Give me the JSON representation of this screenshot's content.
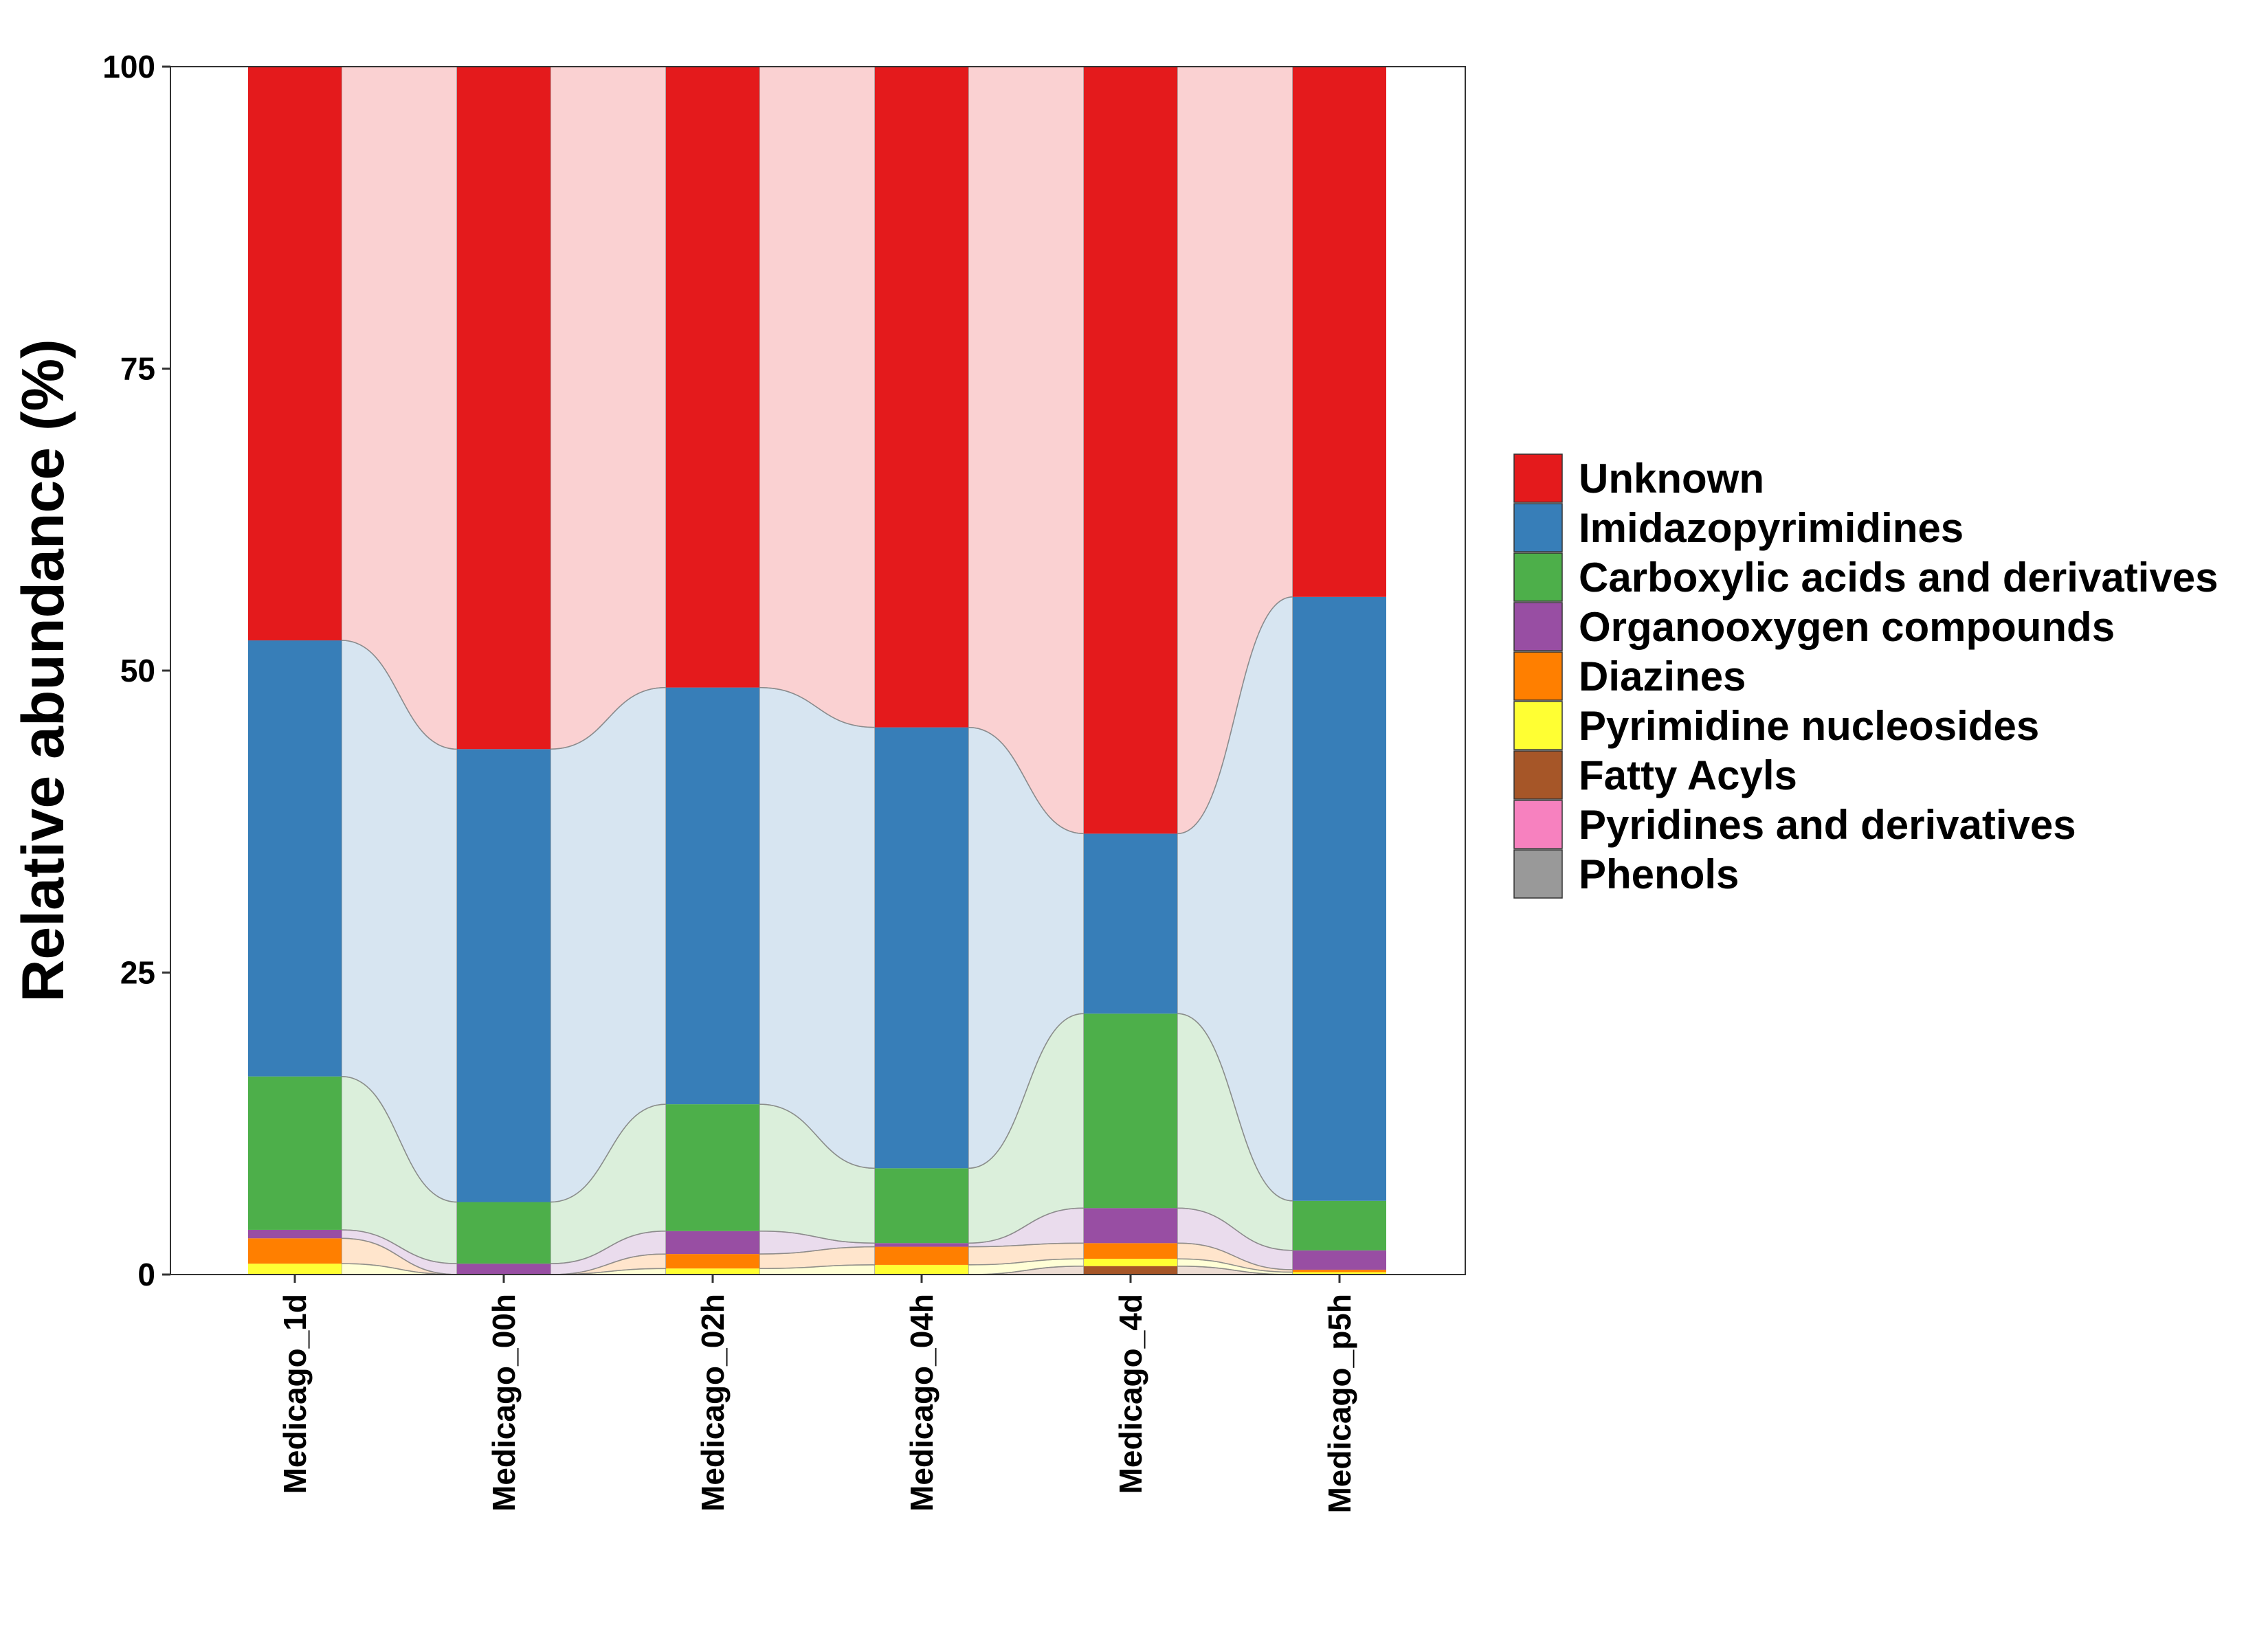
{
  "chart_data": {
    "type": "bar",
    "stacked": true,
    "alluvial_bands": true,
    "title": "",
    "xlabel": "",
    "ylabel": "Relative abundance (%)",
    "ylim": [
      0,
      100
    ],
    "yticks": [
      "0",
      "25",
      "50",
      "75",
      "100"
    ],
    "grid": false,
    "legend_position": "right",
    "categories": [
      "Medicago_1d",
      "Medicago_00h",
      "Medicago_02h",
      "Medicago_04h",
      "Medicago_4d",
      "Medicago_p5h"
    ],
    "series": [
      {
        "name": "Unknown",
        "color": "#E41A1C",
        "values": [
          47.5,
          56.5,
          51.4,
          54.7,
          63.5,
          43.9
        ]
      },
      {
        "name": "Imidazopyrimidines",
        "color": "#377EB8",
        "values": [
          36.1,
          37.5,
          34.5,
          36.5,
          14.9,
          50.0
        ]
      },
      {
        "name": "Carboxylic acids and derivatives",
        "color": "#4DAF4A",
        "values": [
          12.7,
          5.1,
          10.5,
          6.2,
          16.1,
          4.1
        ]
      },
      {
        "name": "Organooxygen compounds",
        "color": "#984EA3",
        "values": [
          0.7,
          0.9,
          1.9,
          0.3,
          2.9,
          1.6
        ]
      },
      {
        "name": "Diazines",
        "color": "#FF7F00",
        "values": [
          2.1,
          0.0,
          1.2,
          1.5,
          1.3,
          0.2
        ]
      },
      {
        "name": "Pyrimidine nucleosides",
        "color": "#FFFF33",
        "values": [
          0.9,
          0.0,
          0.5,
          0.8,
          0.6,
          0.2
        ]
      },
      {
        "name": "Fatty Acyls",
        "color": "#A65628",
        "values": [
          0.0,
          0.0,
          0.0,
          0.0,
          0.7,
          0.0
        ]
      },
      {
        "name": "Pyridines and derivatives",
        "color": "#F781BF",
        "values": [
          0.0,
          0.0,
          0.0,
          0.0,
          0.0,
          0.0
        ]
      },
      {
        "name": "Phenols",
        "color": "#999999",
        "values": [
          0.0,
          0.0,
          0.0,
          0.0,
          0.0,
          0.0
        ]
      }
    ]
  }
}
